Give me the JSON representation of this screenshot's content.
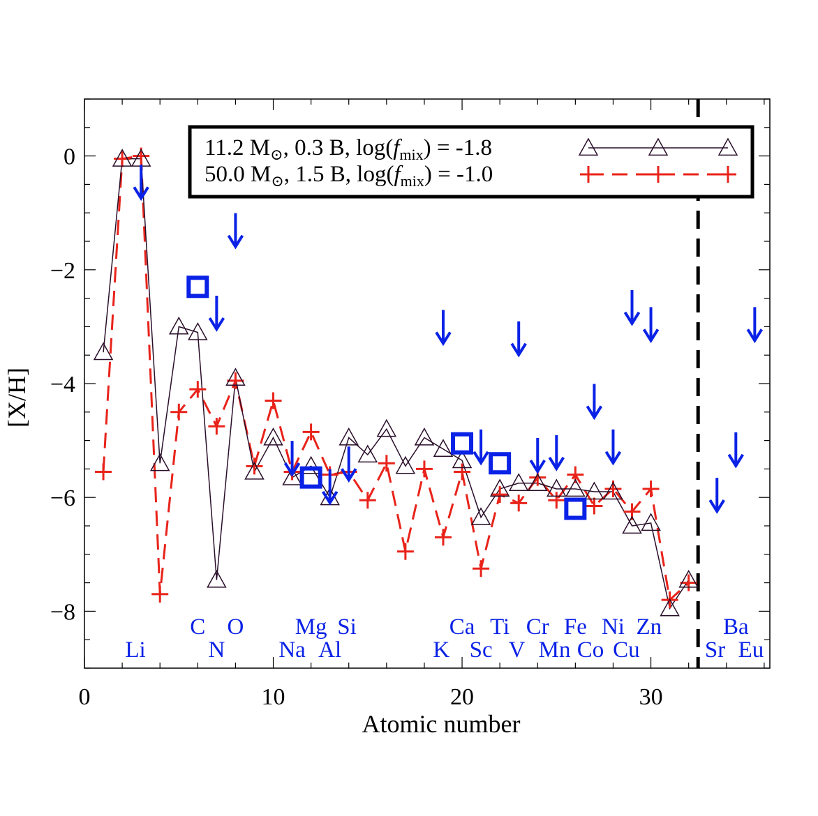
{
  "chart_data": {
    "type": "line",
    "xlabel": "Atomic number",
    "ylabel": "[X/H]",
    "xlim": [
      0,
      36.3
    ],
    "ylim": [
      -9,
      1
    ],
    "xticks": [
      0,
      10,
      20,
      30
    ],
    "yticks": [
      0,
      -2,
      -4,
      -6,
      -8
    ],
    "legend_position": "top-right",
    "divider_x": 32.5,
    "colors": {
      "series1": "#2a0f2a",
      "series2": "#e8231a",
      "observed": "#0a22e6",
      "labels": "#0a22e6",
      "divider": "#000000"
    },
    "series": [
      {
        "name": "11.2 M, 0.3 B, log(f_mix) = -1.8",
        "legend_parts": {
          "mass": "11.2 M",
          "energy": "0.3 B",
          "logf": "log(",
          "f": "f",
          "mix": "mix",
          "val": ") = -1.8"
        },
        "marker": "triangle",
        "line": "solid",
        "x": [
          1,
          2,
          3,
          4,
          5,
          6,
          7,
          8,
          9,
          10,
          11,
          12,
          13,
          14,
          15,
          16,
          17,
          18,
          19,
          20,
          21,
          22,
          23,
          24,
          25,
          26,
          27,
          28,
          29,
          30,
          31,
          32
        ],
        "values": [
          -3.45,
          -0.05,
          -0.05,
          -5.4,
          -3.0,
          -3.1,
          -7.45,
          -3.9,
          -5.55,
          -4.95,
          -5.65,
          -5.45,
          -6.0,
          -4.95,
          -5.25,
          -4.8,
          -5.45,
          -4.95,
          -5.15,
          -5.35,
          -6.35,
          -5.85,
          -5.75,
          -5.75,
          -5.85,
          -5.85,
          -5.9,
          -5.9,
          -6.5,
          -6.45,
          -7.95,
          -7.45
        ]
      },
      {
        "name": "50.0 M, 1.5 B, log(f_mix) = -1.0",
        "legend_parts": {
          "mass": "50.0 M",
          "energy": "1.5 B",
          "logf": "log(",
          "f": "f",
          "mix": "mix",
          "val": ") = -1.0"
        },
        "marker": "plus",
        "line": "dashed",
        "x": [
          1,
          2,
          3,
          4,
          5,
          6,
          7,
          8,
          9,
          10,
          11,
          12,
          13,
          14,
          15,
          16,
          17,
          18,
          19,
          20,
          21,
          22,
          23,
          24,
          25,
          26,
          27,
          28,
          29,
          30,
          31,
          32
        ],
        "values": [
          -5.55,
          -0.05,
          0.0,
          -7.7,
          -4.5,
          -4.1,
          -4.75,
          -3.95,
          -5.45,
          -4.3,
          -5.55,
          -4.85,
          -5.6,
          -5.55,
          -6.05,
          -5.4,
          -6.95,
          -5.5,
          -6.7,
          -5.55,
          -7.25,
          -5.95,
          -6.1,
          -5.65,
          -6.05,
          -5.6,
          -6.15,
          -5.85,
          -6.25,
          -5.85,
          -7.8,
          -7.5
        ]
      }
    ],
    "upper_limits": {
      "x": [
        3,
        7,
        8,
        11,
        13,
        14,
        19,
        21,
        23,
        24,
        25,
        27,
        28,
        29,
        30,
        33.5,
        34.5,
        35.5
      ],
      "y": [
        -0.45,
        -2.75,
        -1.3,
        -5.3,
        -5.8,
        -5.4,
        -3.0,
        -5.1,
        -3.2,
        -5.25,
        -5.2,
        -4.3,
        -5.1,
        -2.65,
        -2.95,
        -5.95,
        -5.15,
        -2.95
      ]
    },
    "detections": {
      "x": [
        6,
        12,
        20,
        22,
        26
      ],
      "y": [
        -2.3,
        -5.65,
        -5.05,
        -5.4,
        -6.2
      ]
    },
    "element_labels": [
      {
        "text": "Li",
        "x": 2.7,
        "row": 2
      },
      {
        "text": "C",
        "x": 6.0,
        "row": 1
      },
      {
        "text": "N",
        "x": 7.0,
        "row": 2
      },
      {
        "text": "O",
        "x": 8.0,
        "row": 1
      },
      {
        "text": "Mg",
        "x": 12.0,
        "row": 1
      },
      {
        "text": "Si",
        "x": 13.9,
        "row": 1
      },
      {
        "text": "Na",
        "x": 11.0,
        "row": 2
      },
      {
        "text": "Al",
        "x": 13.0,
        "row": 2
      },
      {
        "text": "Ca",
        "x": 20.0,
        "row": 1
      },
      {
        "text": "Ti",
        "x": 22.0,
        "row": 1
      },
      {
        "text": "Cr",
        "x": 24.0,
        "row": 1
      },
      {
        "text": "Fe",
        "x": 26.0,
        "row": 1
      },
      {
        "text": "Ni",
        "x": 28.0,
        "row": 1
      },
      {
        "text": "Zn",
        "x": 29.9,
        "row": 1
      },
      {
        "text": "Ba",
        "x": 34.5,
        "row": 1
      },
      {
        "text": "K",
        "x": 18.9,
        "row": 2
      },
      {
        "text": "Sc",
        "x": 21.0,
        "row": 2
      },
      {
        "text": "V",
        "x": 22.9,
        "row": 2
      },
      {
        "text": "Mn",
        "x": 24.9,
        "row": 2
      },
      {
        "text": "Co",
        "x": 26.8,
        "row": 2
      },
      {
        "text": "Cu",
        "x": 28.7,
        "row": 2
      },
      {
        "text": "Sr",
        "x": 33.4,
        "row": 2
      },
      {
        "text": "Eu",
        "x": 35.3,
        "row": 2
      }
    ]
  }
}
